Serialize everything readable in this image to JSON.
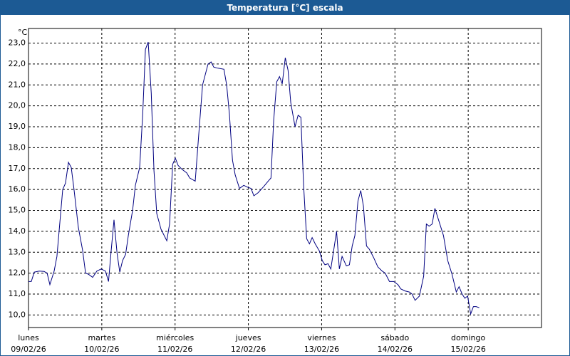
{
  "chart_data": {
    "type": "line",
    "title": "Temperatura [°C] escala",
    "y_unit": "°C",
    "color": "#000080",
    "x": [
      0,
      0.9,
      1.9,
      3.5,
      5.1,
      6.1,
      7.0,
      8.4,
      9.3,
      11.2,
      12.1,
      13.1,
      14.0,
      14.9,
      16.3,
      17.7,
      18.7,
      19.6,
      21.0,
      22.4,
      23.8,
      25.2,
      26.2,
      27.1,
      28.0,
      29.0,
      29.9,
      30.8,
      31.8,
      32.7,
      34.1,
      35.0,
      36.4,
      37.4,
      38.3,
      39.2,
      40.2,
      41.1,
      42.0,
      43.4,
      45.3,
      46.2,
      47.2,
      48.1,
      49.0,
      50.4,
      51.8,
      52.8,
      54.6,
      56.0,
      57.0,
      58.8,
      59.8,
      60.7,
      62.1,
      64.0,
      64.9,
      65.8,
      66.8,
      67.7,
      69.1,
      70.5,
      71.9,
      72.9,
      73.8,
      75.2,
      77.1,
      78.5,
      79.4,
      80.3,
      81.3,
      82.2,
      83.1,
      84.1,
      85.0,
      85.9,
      87.3,
      88.3,
      89.2,
      90.1,
      91.1,
      92.0,
      92.9,
      93.9,
      95.3,
      96.2,
      97.1,
      98.1,
      99.0,
      100.9,
      101.8,
      102.7,
      104.1,
      105.1,
      106.0,
      106.9,
      107.9,
      108.8,
      109.7,
      110.7,
      111.6,
      113.0,
      114.4,
      115.8,
      116.8,
      118.2,
      119.6,
      121.0,
      121.9,
      123.3,
      124.7,
      125.6,
      126.6,
      128.0,
      129.4,
      130.3,
      131.2,
      132.2,
      133.1,
      134.5,
      135.9,
      137.3,
      138.7,
      140.1,
      141.0,
      142.0,
      142.9,
      143.8,
      144.8,
      145.7,
      146.6,
      147.6
    ],
    "values": [
      11.6,
      11.6,
      12.05,
      12.1,
      12.08,
      12.0,
      11.45,
      12.1,
      12.8,
      16.0,
      16.3,
      17.3,
      17.05,
      16.0,
      14.2,
      13.1,
      12.0,
      11.95,
      11.8,
      12.1,
      12.2,
      12.1,
      11.6,
      13.1,
      14.55,
      12.95,
      12.05,
      12.6,
      12.9,
      13.8,
      15.0,
      16.2,
      17.05,
      19.6,
      22.7,
      23.05,
      20.6,
      16.9,
      14.85,
      14.1,
      13.55,
      14.35,
      17.2,
      17.5,
      17.15,
      16.95,
      16.8,
      16.55,
      16.4,
      19.1,
      21.0,
      22.0,
      22.1,
      21.85,
      21.8,
      21.75,
      21.0,
      19.6,
      17.4,
      16.7,
      16.05,
      16.2,
      16.1,
      16.05,
      15.7,
      15.85,
      16.15,
      16.4,
      16.55,
      19.3,
      21.15,
      21.4,
      21.05,
      22.3,
      21.7,
      20.15,
      19.0,
      19.55,
      19.45,
      16.2,
      13.65,
      13.4,
      13.7,
      13.4,
      13.05,
      12.6,
      12.4,
      12.45,
      12.2,
      14.0,
      12.2,
      12.8,
      12.35,
      12.4,
      13.3,
      13.8,
      15.45,
      15.95,
      15.2,
      13.3,
      13.15,
      12.75,
      12.3,
      12.1,
      12.0,
      11.6,
      11.6,
      11.45,
      11.25,
      11.15,
      11.1,
      11.0,
      10.7,
      10.9,
      11.85,
      14.35,
      14.25,
      14.35,
      15.1,
      14.45,
      13.8,
      12.6,
      11.95,
      11.1,
      11.35,
      11.0,
      10.8,
      10.9,
      10.05,
      10.4,
      10.4,
      10.35
    ],
    "xlim": [
      0,
      168
    ],
    "xticks": [
      {
        "value": 0,
        "label": [
          "lunes",
          "09/02/26"
        ]
      },
      {
        "value": 24,
        "label": [
          "martes",
          "10/02/26"
        ]
      },
      {
        "value": 48,
        "label": [
          "miércoles",
          "11/02/26"
        ]
      },
      {
        "value": 72,
        "label": [
          "jueves",
          "12/02/26"
        ]
      },
      {
        "value": 96,
        "label": [
          "viernes",
          "13/02/26"
        ]
      },
      {
        "value": 120,
        "label": [
          "sábado",
          "14/02/26"
        ]
      },
      {
        "value": 144,
        "label": [
          "domingo",
          "15/02/26"
        ]
      }
    ],
    "ylim": [
      9.4,
      23.7
    ],
    "yticks": [
      {
        "value": 10,
        "label": "10,0"
      },
      {
        "value": 11,
        "label": "11,0"
      },
      {
        "value": 12,
        "label": "12,0"
      },
      {
        "value": 13,
        "label": "13,0"
      },
      {
        "value": 14,
        "label": "14,0"
      },
      {
        "value": 15,
        "label": "15,0"
      },
      {
        "value": 16,
        "label": "16,0"
      },
      {
        "value": 17,
        "label": "17,0"
      },
      {
        "value": 18,
        "label": "18,0"
      },
      {
        "value": 19,
        "label": "19,0"
      },
      {
        "value": 20,
        "label": "20,0"
      },
      {
        "value": 21,
        "label": "21,0"
      },
      {
        "value": 22,
        "label": "22,0"
      },
      {
        "value": 23,
        "label": "23,0"
      }
    ],
    "grid": true
  }
}
